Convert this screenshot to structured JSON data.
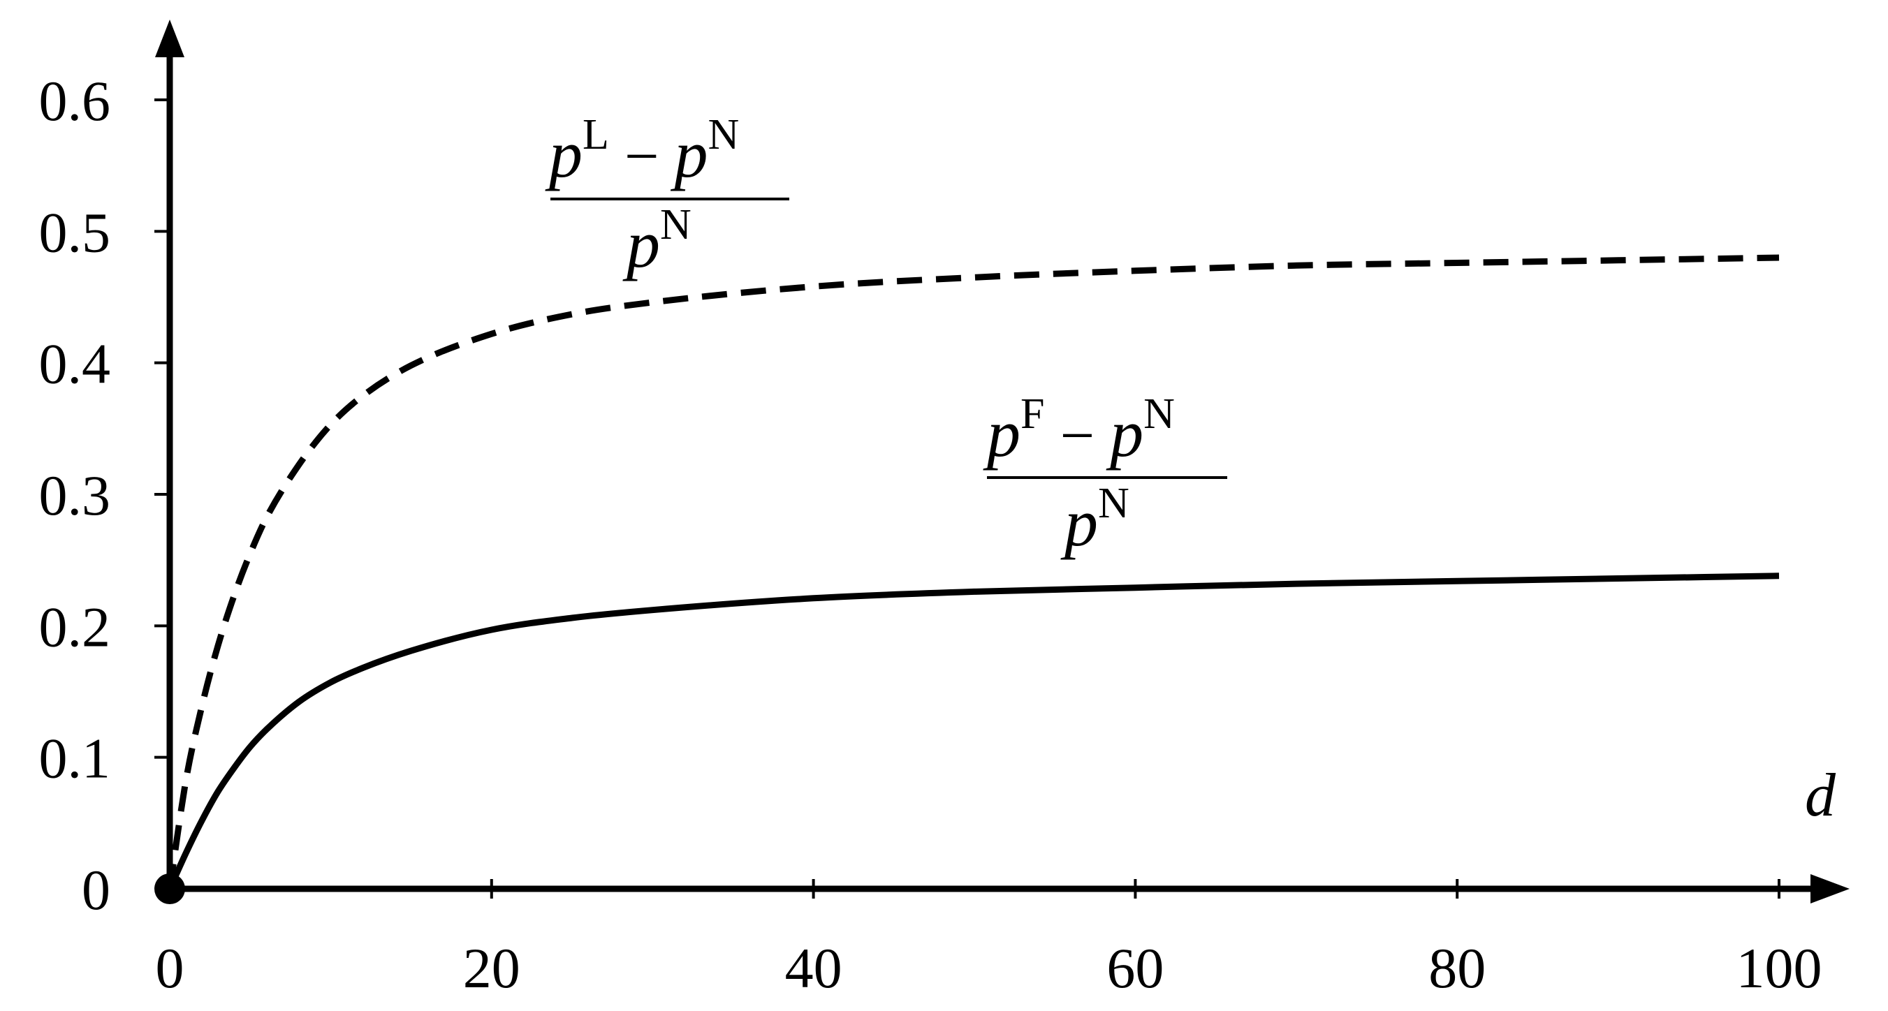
{
  "chart_data": {
    "type": "line",
    "title": "",
    "xlabel": "d",
    "ylabel": "",
    "xlim": [
      0,
      100
    ],
    "ylim": [
      0,
      0.6
    ],
    "x_ticks": [
      0,
      20,
      40,
      60,
      80,
      100
    ],
    "x_tick_labels": [
      "0",
      "20",
      "40",
      "60",
      "80",
      "100"
    ],
    "y_ticks": [
      0,
      0.1,
      0.2,
      0.3,
      0.4,
      0.5,
      0.6
    ],
    "y_tick_labels": [
      "0",
      "0.1",
      "0.2",
      "0.3",
      "0.4",
      "0.5",
      "0.6"
    ],
    "grid": false,
    "legend": "none",
    "origin_marker": true,
    "series": [
      {
        "id": "leader",
        "style": "dashed",
        "color": "#000000",
        "label": {
          "num_var1": "p",
          "num_sup1": "L",
          "num_op": "−",
          "num_var2": "p",
          "num_sup2": "N",
          "den_var": "p",
          "den_sup": "N"
        },
        "x": [
          0,
          1,
          2,
          3,
          4,
          5,
          6,
          8,
          10,
          12,
          15,
          20,
          25,
          30,
          40,
          50,
          60,
          70,
          80,
          90,
          100
        ],
        "y": [
          0,
          0.082,
          0.139,
          0.185,
          0.223,
          0.255,
          0.282,
          0.322,
          0.353,
          0.375,
          0.398,
          0.422,
          0.437,
          0.446,
          0.458,
          0.465,
          0.47,
          0.474,
          0.476,
          0.478,
          0.48
        ]
      },
      {
        "id": "follower",
        "style": "solid",
        "color": "#000000",
        "label": {
          "num_var1": "p",
          "num_sup1": "F",
          "num_op": "−",
          "num_var2": "p",
          "num_sup2": "N",
          "den_var": "p",
          "den_sup": "N"
        },
        "x": [
          0,
          1,
          2,
          3,
          4,
          5,
          6,
          8,
          10,
          12,
          15,
          20,
          25,
          30,
          40,
          50,
          60,
          70,
          80,
          90,
          100
        ],
        "y": [
          0,
          0.027,
          0.052,
          0.074,
          0.092,
          0.108,
          0.121,
          0.142,
          0.157,
          0.168,
          0.181,
          0.197,
          0.206,
          0.212,
          0.221,
          0.226,
          0.229,
          0.232,
          0.234,
          0.236,
          0.238
        ]
      }
    ]
  }
}
